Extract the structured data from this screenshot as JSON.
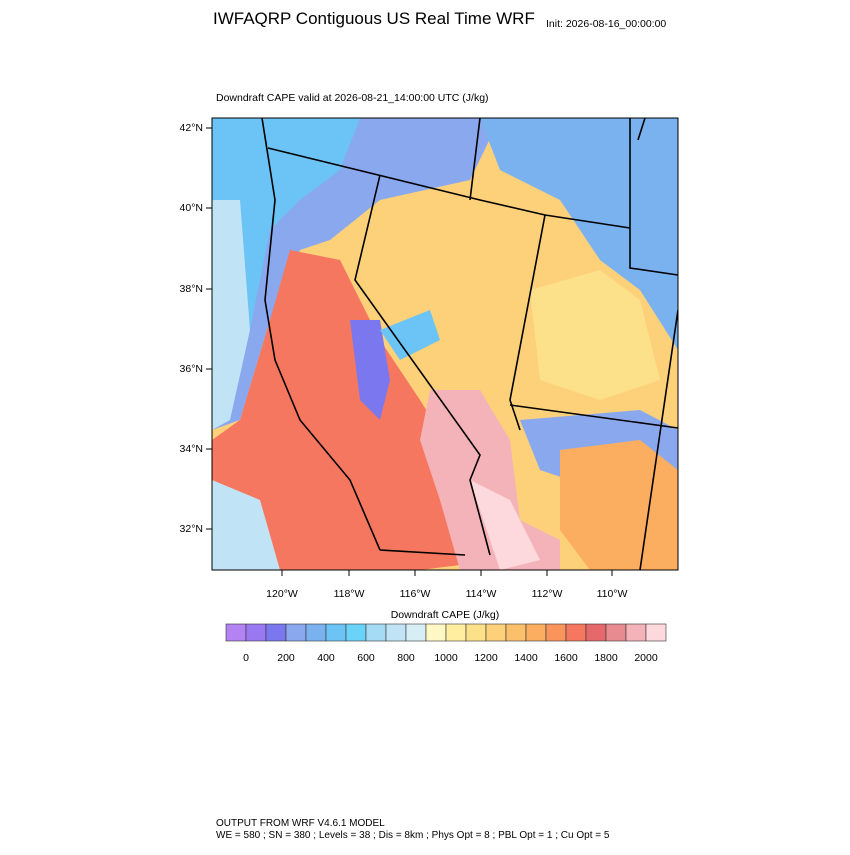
{
  "header": {
    "title": "IWFAQRP Contiguous US Real Time WRF",
    "init": "Init: 2026-08-16_00:00:00"
  },
  "map": {
    "subtitle": "Downdraft CAPE valid at 2026-08-21_14:00:00 UTC   (J/kg)",
    "lat_labels": [
      "42°N",
      "40°N",
      "38°N",
      "36°N",
      "34°N",
      "32°N"
    ],
    "lon_labels": [
      "120°W",
      "118°W",
      "116°W",
      "114°W",
      "112°W",
      "110°W"
    ]
  },
  "colorbar": {
    "title": "Downdraft CAPE  (J/kg)",
    "colors": [
      "#b483f3",
      "#9a78f2",
      "#7b78ef",
      "#8aa8ee",
      "#7ab2f0",
      "#6cc3f5",
      "#6cd3f8",
      "#a6dbf6",
      "#c0e4f5",
      "#d8eef6",
      "#fff8c4",
      "#ffeda0",
      "#fde08a",
      "#fdd07a",
      "#fcc06c",
      "#fbad60",
      "#f9955c",
      "#f6775f",
      "#e5686a",
      "#e88b90",
      "#f4b3b8",
      "#fdd9dd"
    ],
    "ticks": [
      0,
      200,
      400,
      600,
      800,
      1000,
      1200,
      1400,
      1600,
      1800,
      2000
    ]
  },
  "footer": {
    "line1": "OUTPUT FROM WRF V4.6.1 MODEL",
    "line2": "WE = 580 ; SN = 380 ; Levels = 38 ; Dis = 8km ; Phys Opt = 8 ; PBL Opt = 1 ; Cu Opt = 5"
  }
}
